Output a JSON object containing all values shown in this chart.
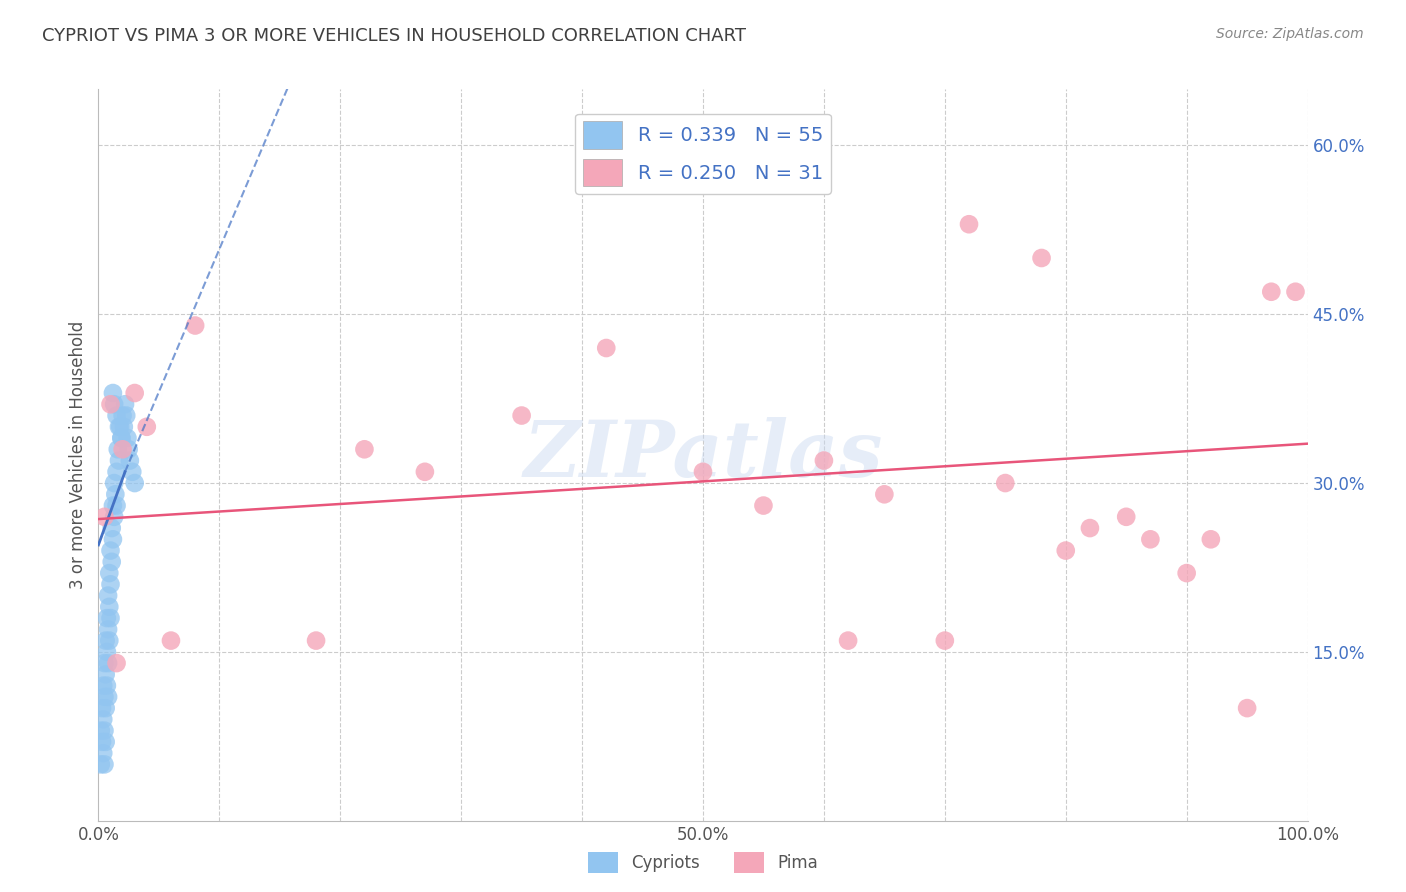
{
  "title": "CYPRIOT VS PIMA 3 OR MORE VEHICLES IN HOUSEHOLD CORRELATION CHART",
  "source": "Source: ZipAtlas.com",
  "ylabel": "3 or more Vehicles in Household",
  "watermark": "ZIPatlas",
  "cypriot_color": "#92C5F0",
  "pima_color": "#F4A7B9",
  "cypriot_line_color": "#4472C4",
  "pima_line_color": "#E8557A",
  "legend_text_color": "#4472C4",
  "cypriot_R": 0.339,
  "cypriot_N": 55,
  "pima_R": 0.25,
  "pima_N": 31,
  "xlim": [
    0.0,
    1.0
  ],
  "ylim": [
    0.0,
    0.65
  ],
  "ytick_positions": [
    0.15,
    0.3,
    0.45,
    0.6
  ],
  "ytick_labels_right": [
    "15.0%",
    "30.0%",
    "45.0%",
    "60.0%"
  ],
  "background_color": "#FFFFFF",
  "grid_color": "#CCCCCC",
  "title_color": "#404040",
  "cypriot_x": [
    0.002,
    0.002,
    0.003,
    0.003,
    0.004,
    0.004,
    0.004,
    0.005,
    0.005,
    0.005,
    0.005,
    0.006,
    0.006,
    0.006,
    0.006,
    0.007,
    0.007,
    0.007,
    0.008,
    0.008,
    0.008,
    0.008,
    0.009,
    0.009,
    0.009,
    0.01,
    0.01,
    0.01,
    0.011,
    0.011,
    0.012,
    0.012,
    0.013,
    0.013,
    0.014,
    0.015,
    0.015,
    0.016,
    0.017,
    0.018,
    0.019,
    0.02,
    0.021,
    0.022,
    0.023,
    0.024,
    0.025,
    0.026,
    0.028,
    0.03,
    0.012,
    0.013,
    0.015,
    0.017,
    0.019
  ],
  "cypriot_y": [
    0.08,
    0.05,
    0.1,
    0.07,
    0.12,
    0.09,
    0.06,
    0.14,
    0.11,
    0.08,
    0.05,
    0.16,
    0.13,
    0.1,
    0.07,
    0.18,
    0.15,
    0.12,
    0.2,
    0.17,
    0.14,
    0.11,
    0.22,
    0.19,
    0.16,
    0.24,
    0.21,
    0.18,
    0.26,
    0.23,
    0.28,
    0.25,
    0.3,
    0.27,
    0.29,
    0.31,
    0.28,
    0.33,
    0.32,
    0.35,
    0.34,
    0.36,
    0.35,
    0.37,
    0.36,
    0.34,
    0.33,
    0.32,
    0.31,
    0.3,
    0.38,
    0.37,
    0.36,
    0.35,
    0.34
  ],
  "pima_x": [
    0.005,
    0.01,
    0.015,
    0.02,
    0.03,
    0.04,
    0.06,
    0.08,
    0.18,
    0.22,
    0.27,
    0.35,
    0.42,
    0.5,
    0.55,
    0.6,
    0.62,
    0.65,
    0.7,
    0.72,
    0.75,
    0.78,
    0.8,
    0.82,
    0.85,
    0.87,
    0.9,
    0.92,
    0.95,
    0.97,
    0.99
  ],
  "pima_y": [
    0.27,
    0.37,
    0.14,
    0.33,
    0.38,
    0.35,
    0.16,
    0.44,
    0.16,
    0.33,
    0.31,
    0.36,
    0.42,
    0.31,
    0.28,
    0.32,
    0.16,
    0.29,
    0.16,
    0.53,
    0.3,
    0.5,
    0.24,
    0.26,
    0.27,
    0.25,
    0.22,
    0.25,
    0.1,
    0.47,
    0.47
  ],
  "blue_line_x0": 0.0,
  "blue_line_y0": 0.245,
  "blue_line_x1": 0.022,
  "blue_line_y1": 0.31,
  "blue_line_dashed_x0": 0.022,
  "blue_line_dashed_y0": 0.31,
  "blue_line_dashed_x1": 0.16,
  "blue_line_dashed_y1": 0.66,
  "pink_line_x0": 0.0,
  "pink_line_y0": 0.268,
  "pink_line_x1": 1.0,
  "pink_line_y1": 0.335
}
